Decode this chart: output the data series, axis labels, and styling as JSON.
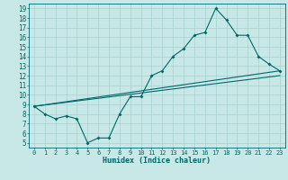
{
  "xlabel": "Humidex (Indice chaleur)",
  "ylabel": "",
  "bg_color": "#c8e8e8",
  "grid_color": "#a8d0d0",
  "line_color": "#006868",
  "xlim": [
    -0.5,
    23.5
  ],
  "ylim": [
    4.5,
    19.5
  ],
  "xticks": [
    0,
    1,
    2,
    3,
    4,
    5,
    6,
    7,
    8,
    9,
    10,
    11,
    12,
    13,
    14,
    15,
    16,
    17,
    18,
    19,
    20,
    21,
    22,
    23
  ],
  "yticks": [
    5,
    6,
    7,
    8,
    9,
    10,
    11,
    12,
    13,
    14,
    15,
    16,
    17,
    18,
    19
  ],
  "line1_x": [
    0,
    1,
    2,
    3,
    4,
    5,
    6,
    7,
    8,
    9,
    10,
    11,
    12,
    13,
    14,
    15,
    16,
    17,
    18,
    19,
    20,
    21,
    22,
    23
  ],
  "line1_y": [
    8.8,
    8.0,
    7.5,
    7.8,
    7.5,
    5.0,
    5.5,
    5.5,
    8.0,
    9.8,
    9.8,
    12.0,
    12.5,
    14.0,
    14.8,
    16.2,
    16.5,
    19.0,
    17.8,
    16.2,
    16.2,
    14.0,
    13.2,
    12.5
  ],
  "line2_x": [
    0,
    23
  ],
  "line2_y": [
    8.8,
    12.5
  ],
  "line3_x": [
    0,
    23
  ],
  "line3_y": [
    8.8,
    12.0
  ]
}
